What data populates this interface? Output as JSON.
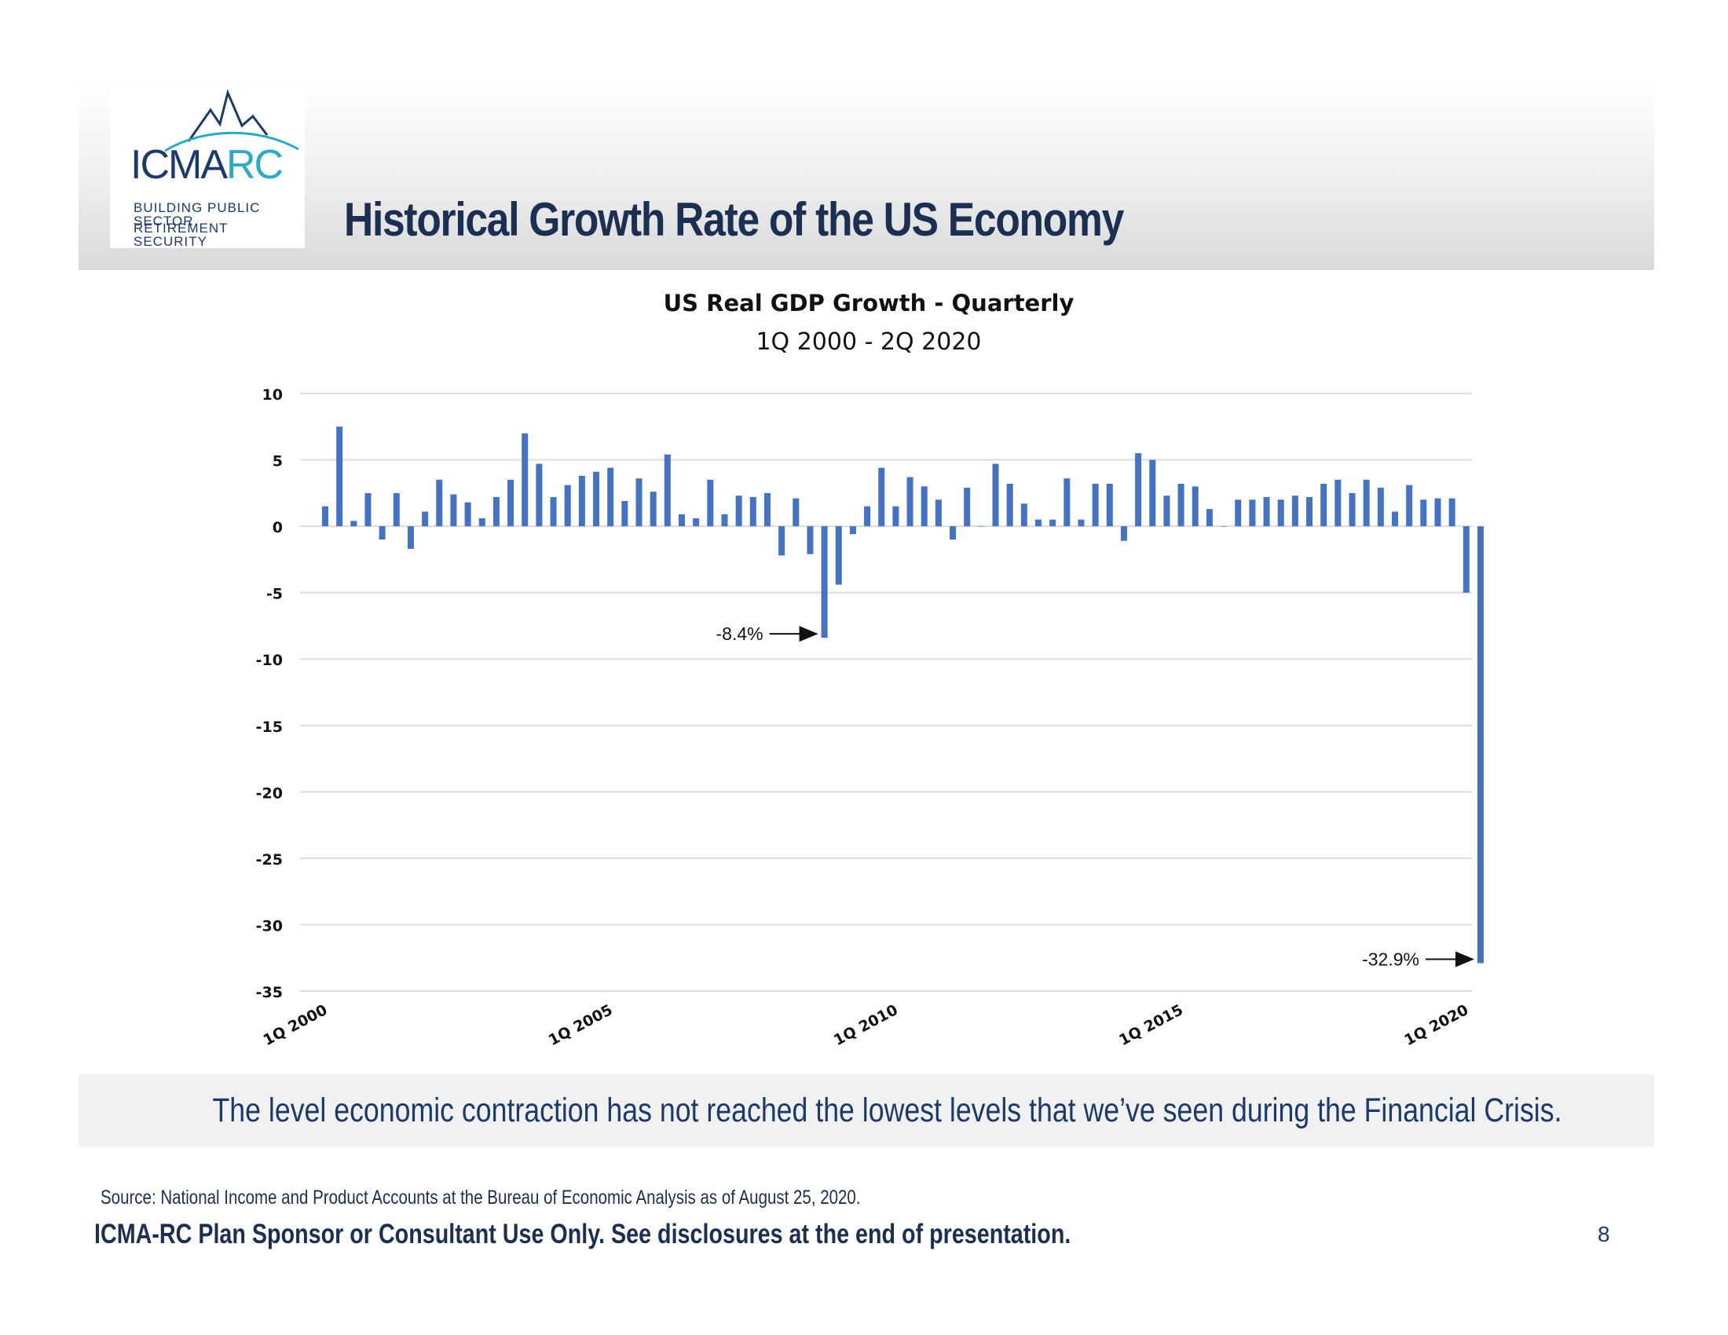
{
  "slide": {
    "title": "Historical Growth Rate of the US Economy",
    "page_number": "8"
  },
  "logo": {
    "wordmark_main": "ICMA",
    "wordmark_accent": "RC",
    "tagline_line1": "BUILDING PUBLIC SECTOR",
    "tagline_line2": "RETIREMENT SECURITY"
  },
  "takeaway": "The level economic contraction has not reached the lowest levels that we’ve seen during the Financial Crisis.",
  "source": "Source:  National Income and Product Accounts at the Bureau of Economic Analysis as of August 25, 2020.",
  "disclosure": "ICMA-RC Plan Sponsor or Consultant Use Only.  See disclosures at the end of presentation.",
  "colors": {
    "bar": "#4472c4",
    "title": "#1b2f52",
    "takeaway": "#1b3a6b",
    "logo_dark": "#1a3a6e",
    "logo_accent": "#2aa9c9"
  },
  "chart_data": {
    "type": "bar",
    "title": "US Real GDP Growth - Quarterly",
    "subtitle": "1Q 2000 - 2Q 2020",
    "xlabel": "",
    "ylabel": "",
    "ylim": [
      -35,
      10
    ],
    "yticks": [
      10,
      5,
      0,
      -5,
      -10,
      -15,
      -20,
      -25,
      -30,
      -35
    ],
    "grid": true,
    "x_tick_labels": [
      {
        "index": 0,
        "label": "1Q 2000"
      },
      {
        "index": 20,
        "label": "1Q 2005"
      },
      {
        "index": 40,
        "label": "1Q 2010"
      },
      {
        "index": 60,
        "label": "1Q 2015"
      },
      {
        "index": 80,
        "label": "1Q 2020"
      }
    ],
    "values": [
      1.5,
      7.5,
      0.4,
      2.5,
      -1.0,
      2.5,
      -1.7,
      1.1,
      3.5,
      2.4,
      1.8,
      0.6,
      2.2,
      3.5,
      7.0,
      4.7,
      2.2,
      3.1,
      3.8,
      4.1,
      4.4,
      1.9,
      3.6,
      2.6,
      5.4,
      0.9,
      0.6,
      3.5,
      0.9,
      2.3,
      2.2,
      2.5,
      -2.2,
      2.1,
      -2.1,
      -8.4,
      -4.4,
      -0.6,
      1.5,
      4.4,
      1.5,
      3.7,
      3.0,
      2.0,
      -1.0,
      2.9,
      0.0,
      4.7,
      3.2,
      1.7,
      0.5,
      0.5,
      3.6,
      0.5,
      3.2,
      3.2,
      -1.1,
      5.5,
      5.0,
      2.3,
      3.2,
      3.0,
      1.3,
      0.0,
      2.0,
      2.0,
      2.2,
      2.0,
      2.3,
      2.2,
      3.2,
      3.5,
      2.5,
      3.5,
      2.9,
      1.1,
      3.1,
      2.0,
      2.1,
      2.1,
      -5.0,
      -32.9
    ],
    "annotations": [
      {
        "index": 35,
        "text": "-8.4%"
      },
      {
        "index": 81,
        "text": "-32.9%"
      }
    ]
  }
}
